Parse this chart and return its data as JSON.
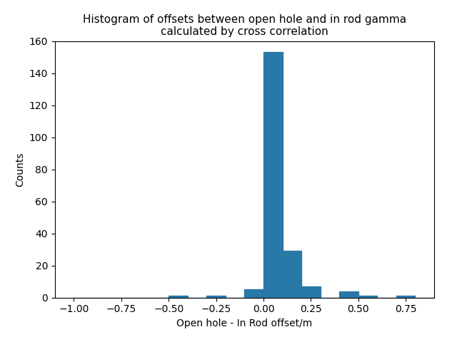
{
  "title": "Histogram of offsets between open hole and in rod gamma\ncalculated by cross correlation",
  "xlabel": "Open hole - In Rod offset/m",
  "ylabel": "Counts",
  "bar_color": "#2878a8",
  "xlim": [
    -1.1,
    0.9
  ],
  "ylim": [
    0,
    160
  ],
  "yticks": [
    0,
    20,
    40,
    60,
    80,
    100,
    120,
    140,
    160
  ],
  "bin_edges": [
    -1.0,
    -0.9,
    -0.8,
    -0.7,
    -0.6,
    -0.5,
    -0.4,
    -0.3,
    -0.2,
    -0.1,
    0.0,
    0.1,
    0.2,
    0.3,
    0.4,
    0.5,
    0.6,
    0.7,
    0.8,
    0.9
  ],
  "bin_heights": [
    0,
    0,
    0,
    0,
    0,
    1,
    0,
    1,
    0,
    5,
    153,
    29,
    7,
    0,
    4,
    1,
    0,
    1,
    0
  ],
  "figsize": [
    6.4,
    4.8
  ],
  "dpi": 100
}
